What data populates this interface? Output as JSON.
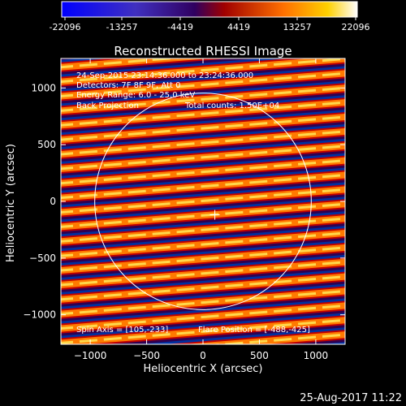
{
  "colorbar": {
    "ticks": [
      "-22096",
      "-13257",
      "-4419",
      "4419",
      "13257",
      "22096"
    ],
    "min": -22096,
    "max": 22096
  },
  "chart_data": {
    "type": "heatmap",
    "title": "Reconstructed RHESSI Image",
    "xlabel": "Heliocentric X (arcsec)",
    "ylabel": "Heliocentric Y (arcsec)",
    "xlim": [
      -1260,
      1260
    ],
    "ylim": [
      -1260,
      1260
    ],
    "xticks": [
      -1000,
      -500,
      0,
      500,
      1000
    ],
    "yticks": [
      -1000,
      -500,
      0,
      500,
      1000
    ],
    "xtick_labels": [
      "−1000",
      "−500",
      "0",
      "500",
      "1000"
    ],
    "ytick_labels": [
      "−1000",
      "−500",
      "0",
      "500",
      "1000"
    ],
    "solar_limb_radius": 960,
    "crosshair": [
      105,
      -233
    ],
    "fringe_period": 128,
    "fringe_slope": 0.08,
    "annotations": {
      "time_range": "24-Sep-2015 23:14:36.000 to 23:24:36.000",
      "detectors": "Detectors: 7F 8F 9F, Att 0",
      "energy": "Energy Range: 6.0 - 25.0 keV",
      "method": "Back Projection",
      "total_counts": "Total counts: 1.50E+04",
      "spin_axis": "Spin Axis = [105,-233]",
      "flare_position": "Flare Position = [-488,-425]"
    }
  },
  "footer": {
    "timestamp": "25-Aug-2017 11:22"
  }
}
